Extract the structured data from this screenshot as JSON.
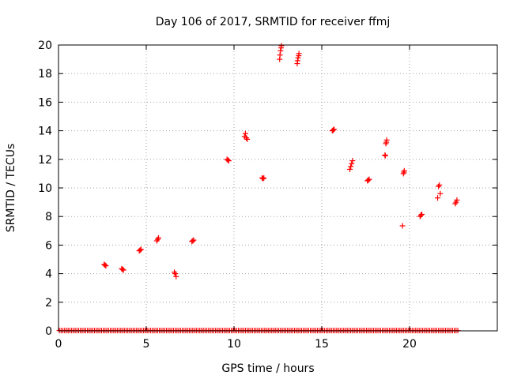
{
  "chart_data": {
    "type": "scatter",
    "title": "Day 106 of 2017, SRMTID for receiver ffmj",
    "xlabel": "GPS time / hours",
    "ylabel": "SRMTID / TECUs",
    "xlim": [
      0,
      25
    ],
    "ylim": [
      0,
      20
    ],
    "x_ticks": [
      "0",
      "5",
      "10",
      "15",
      "20"
    ],
    "y_ticks": [
      "0",
      "2",
      "4",
      "6",
      "8",
      "10",
      "12",
      "14",
      "16",
      "18",
      "20"
    ],
    "grid": true,
    "series": [
      {
        "name": "SRMTID",
        "color": "#ff0000",
        "marker": "plus",
        "baseline": {
          "value": 0.02,
          "x_start": 0.05,
          "x_end": 22.8,
          "step": 0.1
        },
        "points": [
          [
            2.6,
            4.65
          ],
          [
            2.65,
            4.6
          ],
          [
            2.7,
            4.55
          ],
          [
            3.6,
            4.35
          ],
          [
            3.65,
            4.3
          ],
          [
            3.7,
            4.25
          ],
          [
            4.6,
            5.6
          ],
          [
            4.65,
            5.65
          ],
          [
            4.7,
            5.7
          ],
          [
            5.6,
            6.3
          ],
          [
            5.65,
            6.4
          ],
          [
            5.7,
            6.5
          ],
          [
            6.6,
            4.1
          ],
          [
            6.65,
            4.0
          ],
          [
            6.7,
            3.8
          ],
          [
            7.6,
            6.25
          ],
          [
            7.65,
            6.3
          ],
          [
            7.7,
            6.35
          ],
          [
            9.6,
            12.0
          ],
          [
            9.65,
            11.95
          ],
          [
            9.7,
            11.9
          ],
          [
            10.6,
            13.6
          ],
          [
            10.65,
            13.8
          ],
          [
            10.7,
            13.5
          ],
          [
            10.75,
            13.4
          ],
          [
            11.6,
            10.7
          ],
          [
            11.65,
            10.65
          ],
          [
            11.7,
            10.7
          ],
          [
            12.6,
            19.0
          ],
          [
            12.62,
            19.3
          ],
          [
            12.65,
            19.6
          ],
          [
            12.68,
            19.8
          ],
          [
            12.7,
            19.95
          ],
          [
            13.6,
            18.7
          ],
          [
            13.62,
            18.9
          ],
          [
            13.65,
            19.1
          ],
          [
            13.68,
            19.25
          ],
          [
            13.7,
            19.4
          ],
          [
            15.6,
            14.0
          ],
          [
            15.65,
            14.05
          ],
          [
            15.7,
            14.1
          ],
          [
            16.6,
            11.3
          ],
          [
            16.65,
            11.5
          ],
          [
            16.7,
            11.7
          ],
          [
            16.75,
            11.9
          ],
          [
            17.6,
            10.5
          ],
          [
            17.65,
            10.55
          ],
          [
            17.7,
            10.6
          ],
          [
            18.6,
            12.3
          ],
          [
            18.62,
            12.25
          ],
          [
            18.65,
            13.1
          ],
          [
            18.68,
            13.2
          ],
          [
            18.7,
            13.35
          ],
          [
            19.6,
            7.35
          ],
          [
            19.65,
            11.0
          ],
          [
            19.68,
            11.1
          ],
          [
            19.7,
            11.2
          ],
          [
            20.6,
            8.0
          ],
          [
            20.65,
            8.1
          ],
          [
            20.7,
            8.15
          ],
          [
            21.6,
            9.3
          ],
          [
            21.65,
            10.1
          ],
          [
            21.7,
            10.2
          ],
          [
            21.75,
            9.6
          ],
          [
            22.6,
            8.9
          ],
          [
            22.65,
            9.0
          ],
          [
            22.7,
            9.15
          ]
        ]
      }
    ]
  }
}
